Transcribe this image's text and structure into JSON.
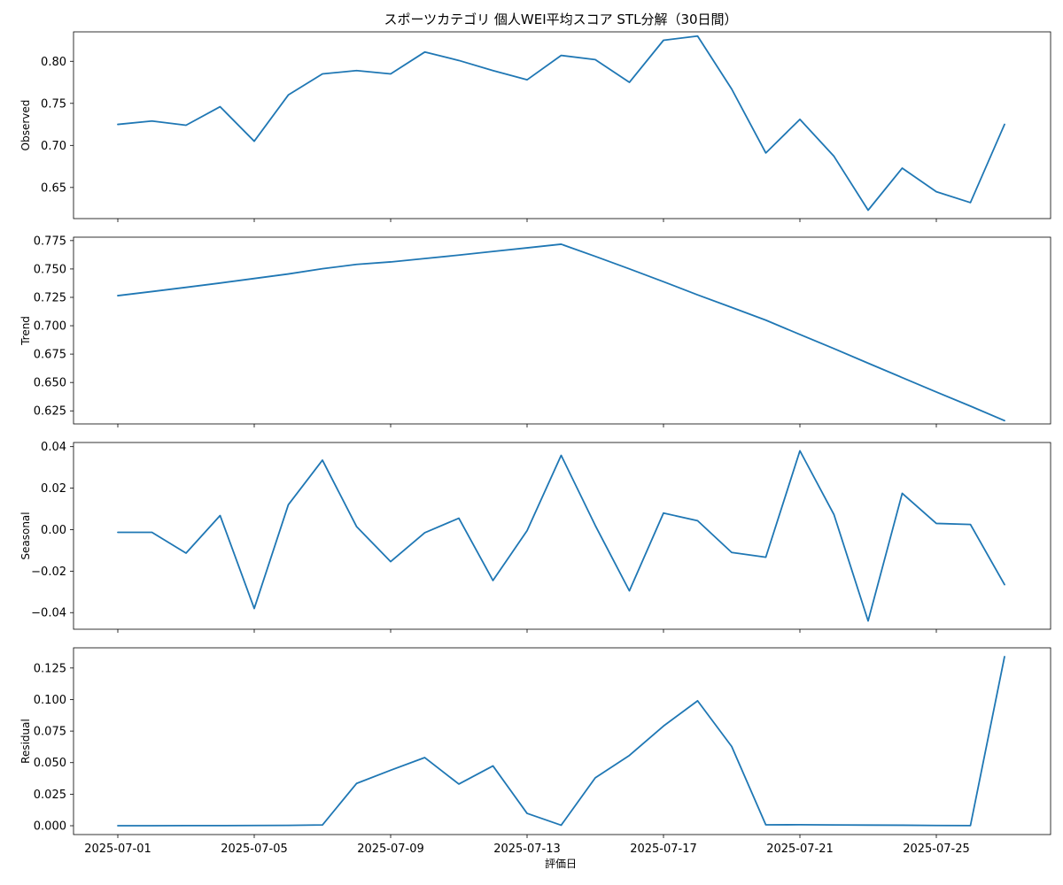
{
  "chart_data": {
    "type": "line",
    "title": "スポーツカテゴリ 個人WEI平均スコア STL分解（30日間）",
    "xlabel": "評価日",
    "x": [
      "2025-07-01",
      "2025-07-02",
      "2025-07-03",
      "2025-07-04",
      "2025-07-05",
      "2025-07-06",
      "2025-07-07",
      "2025-07-08",
      "2025-07-09",
      "2025-07-10",
      "2025-07-11",
      "2025-07-12",
      "2025-07-13",
      "2025-07-14",
      "2025-07-15",
      "2025-07-16",
      "2025-07-17",
      "2025-07-18",
      "2025-07-19",
      "2025-07-20",
      "2025-07-21",
      "2025-07-22",
      "2025-07-23",
      "2025-07-24",
      "2025-07-25",
      "2025-07-26",
      "2025-07-27"
    ],
    "x_ticks": [
      "2025-07-01",
      "2025-07-05",
      "2025-07-09",
      "2025-07-13",
      "2025-07-17",
      "2025-07-21",
      "2025-07-25"
    ],
    "color": "#1f77b4",
    "series": [
      {
        "name": "Observed",
        "ylim": [
          0.613,
          0.835
        ],
        "yticks": [
          0.65,
          0.7,
          0.75,
          0.8
        ],
        "yticks_text": [
          "0.65",
          "0.70",
          "0.75",
          "0.80"
        ],
        "values": [
          0.725,
          0.729,
          0.724,
          0.746,
          0.705,
          0.76,
          0.785,
          0.789,
          0.785,
          0.811,
          0.801,
          0.789,
          0.778,
          0.807,
          0.802,
          0.775,
          0.825,
          0.83,
          0.767,
          0.691,
          0.731,
          0.687,
          0.623,
          0.673,
          0.645,
          0.632,
          0.725
        ]
      },
      {
        "name": "Trend",
        "ylim": [
          0.6135,
          0.778
        ],
        "yticks": [
          0.625,
          0.65,
          0.675,
          0.7,
          0.725,
          0.75,
          0.775
        ],
        "yticks_text": [
          "0.625",
          "0.650",
          "0.675",
          "0.700",
          "0.725",
          "0.750",
          "0.775"
        ],
        "values": [
          0.7265,
          0.7301,
          0.7338,
          0.7376,
          0.7416,
          0.7456,
          0.7502,
          0.754,
          0.7562,
          0.7592,
          0.7622,
          0.7654,
          0.7686,
          0.7718,
          0.7611,
          0.7501,
          0.7388,
          0.7272,
          0.7161,
          0.7049,
          0.6923,
          0.6798,
          0.667,
          0.6543,
          0.6416,
          0.6292,
          0.6164
        ]
      },
      {
        "name": "Seasonal",
        "ylim": [
          -0.048,
          0.042
        ],
        "yticks": [
          -0.04,
          -0.02,
          0.0,
          0.02,
          0.04
        ],
        "yticks_text": [
          "−0.04",
          "−0.02",
          "0.00",
          "0.02",
          "0.04"
        ],
        "values": [
          -0.0013,
          -0.0013,
          -0.0113,
          0.0068,
          -0.038,
          0.012,
          0.0335,
          0.0015,
          -0.0154,
          -0.0015,
          0.0055,
          -0.0245,
          -0.0005,
          0.0358,
          0.002,
          -0.0295,
          0.008,
          0.0043,
          -0.011,
          -0.0133,
          0.038,
          0.0072,
          -0.044,
          0.0175,
          0.003,
          0.0025,
          -0.0265
        ]
      },
      {
        "name": "Residual",
        "ylim": [
          -0.007,
          0.141
        ],
        "yticks": [
          0.0,
          0.025,
          0.05,
          0.075,
          0.1,
          0.125
        ],
        "yticks_text": [
          "0.000",
          "0.025",
          "0.050",
          "0.075",
          "0.100",
          "0.125"
        ],
        "values": [
          0.0,
          0.0,
          0.0001,
          0.0001,
          0.0002,
          0.0003,
          0.0006,
          0.0335,
          0.044,
          0.054,
          0.033,
          0.0474,
          0.0098,
          0.0004,
          0.038,
          0.0557,
          0.079,
          0.099,
          0.0628,
          0.0007,
          0.0008,
          0.0006,
          0.0005,
          0.0004,
          0.0002,
          0.0001,
          0.134
        ]
      }
    ]
  }
}
